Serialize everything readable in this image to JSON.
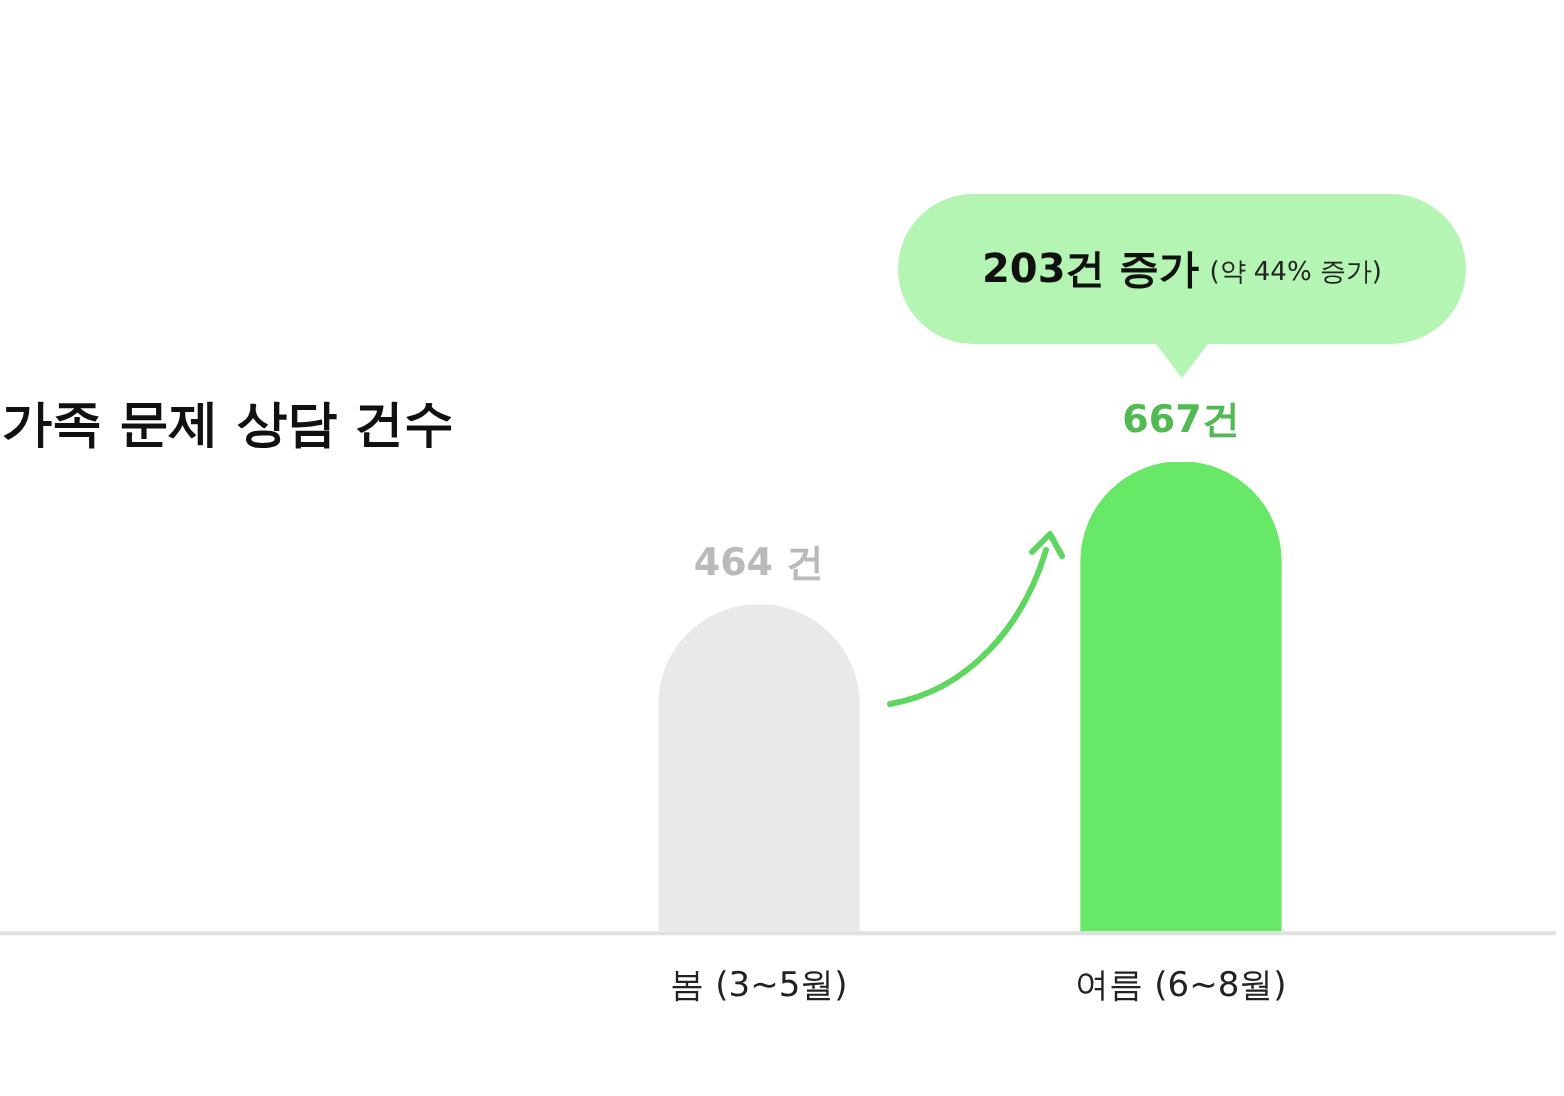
{
  "chart_data": {
    "type": "bar",
    "title": "가족 문제 상담 건수",
    "categories": [
      "봄 (3~5월)",
      "여름 (6~8월)"
    ],
    "values": [
      464,
      667
    ],
    "colors": [
      "#e9e9e9",
      "#67e967"
    ],
    "value_labels": [
      "464 건",
      "667건"
    ],
    "annotations": [
      "203건 증가",
      "(약 44% 증가)"
    ]
  }
}
